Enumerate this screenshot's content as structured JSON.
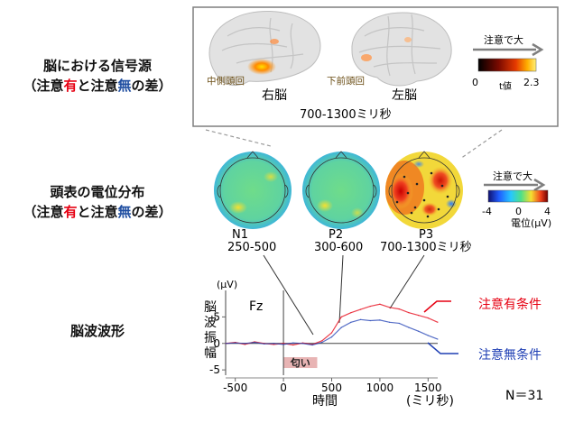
{
  "labels": {
    "source": {
      "line1": "脳における信号源",
      "line2_pre": "（注意",
      "line2_red": "有",
      "line2_mid": "と注意",
      "line2_blue": "無",
      "line2_post": "の差）"
    },
    "topo": {
      "line1": "頭表の電位分布",
      "line2_pre": "（注意",
      "line2_red": "有",
      "line2_mid": "と注意",
      "line2_blue": "無",
      "line2_post": "の差）"
    },
    "waveform": "脳波波形"
  },
  "brain_panel": {
    "right_label": "右脳",
    "left_label": "左脳",
    "right_region": "中側頭回",
    "left_region": "下前頭回",
    "time_window": "700-1300ミリ秒",
    "arrow_label": "注意で大",
    "scale_min": "0",
    "scale_mid": "t値",
    "scale_max": "2.3"
  },
  "topo_panel": {
    "maps": [
      {
        "name": "N1",
        "range": "250-500"
      },
      {
        "name": "P2",
        "range": "300-600"
      },
      {
        "name": "P3",
        "range": "700-1300ミリ秒"
      }
    ],
    "arrow_label": "注意で大",
    "scale_min": "-4",
    "scale_mid": "0",
    "scale_max": "4",
    "unit": "電位(μV)"
  },
  "waveform_panel": {
    "unit": "(μV)",
    "ylabel": "脳波振幅",
    "channel": "Fz",
    "stimulus": "匂い",
    "xlabel": "時間",
    "xunit": "(ミリ秒)",
    "n_label": "N＝31",
    "legend_attend": "注意有条件",
    "legend_unattend": "注意無条件",
    "color_attend": "#e60012",
    "color_unattend": "#1f3fb4"
  },
  "chart_data": {
    "type": "line",
    "xlabel": "時間",
    "ylabel": "脳波振幅",
    "xlim": [
      -600,
      1600
    ],
    "ylim": [
      -6,
      10
    ],
    "xticks": [
      -500,
      0,
      500,
      1000,
      1500
    ],
    "yticks": [
      -5,
      0,
      5
    ],
    "x": [
      -600,
      -500,
      -400,
      -300,
      -200,
      -100,
      0,
      100,
      200,
      300,
      400,
      500,
      600,
      700,
      800,
      900,
      1000,
      1100,
      1200,
      1300,
      1400,
      1500,
      1600
    ],
    "series": [
      {
        "name": "注意有条件",
        "values": [
          0,
          0.2,
          -0.2,
          0.3,
          0,
          -0.2,
          0,
          -0.3,
          0.1,
          -0.2,
          0.5,
          2,
          5,
          5.8,
          6.4,
          7,
          7.4,
          6.8,
          6.5,
          5.8,
          5.3,
          4.8,
          4
        ]
      },
      {
        "name": "注意無条件",
        "values": [
          0,
          0.1,
          0,
          0.2,
          -0.1,
          0,
          -0.2,
          0.1,
          0,
          -0.3,
          0.2,
          1.2,
          3,
          4,
          4.5,
          4.3,
          4.4,
          4,
          3.8,
          3,
          2.3,
          1.5,
          0.8
        ]
      }
    ],
    "stimulus_bar": {
      "label": "匂い",
      "start": 0,
      "end": 350
    }
  }
}
